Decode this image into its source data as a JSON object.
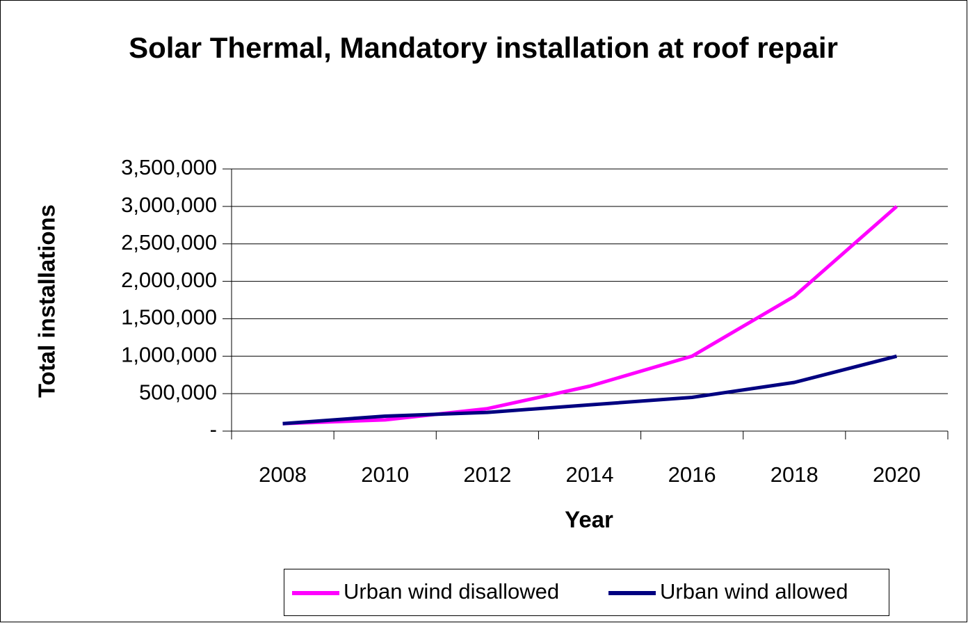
{
  "chart_data": {
    "type": "line",
    "title": "Solar Thermal, Mandatory installation at roof repair",
    "x_label": "Year",
    "y_label": "Total installations",
    "categories": [
      "2008",
      "2010",
      "2012",
      "2014",
      "2016",
      "2018",
      "2020"
    ],
    "series": [
      {
        "name": "Urban wind disallowed",
        "color": "#ff00ff",
        "values": [
          100000,
          150000,
          300000,
          600000,
          1000000,
          1800000,
          3000000
        ]
      },
      {
        "name": "Urban wind allowed",
        "color": "#000080",
        "values": [
          100000,
          200000,
          250000,
          350000,
          450000,
          650000,
          1000000
        ]
      }
    ],
    "ylim": [
      0,
      3500000
    ],
    "yticks": [
      {
        "value": 0,
        "label": "-"
      },
      {
        "value": 500000,
        "label": "500,000"
      },
      {
        "value": 1000000,
        "label": "1,000,000"
      },
      {
        "value": 1500000,
        "label": "1,500,000"
      },
      {
        "value": 2000000,
        "label": "2,000,000"
      },
      {
        "value": 2500000,
        "label": "2,500,000"
      },
      {
        "value": 3000000,
        "label": "3,000,000"
      },
      {
        "value": 3500000,
        "label": "3,500,000"
      }
    ],
    "grid": true,
    "legend": "bottom"
  }
}
